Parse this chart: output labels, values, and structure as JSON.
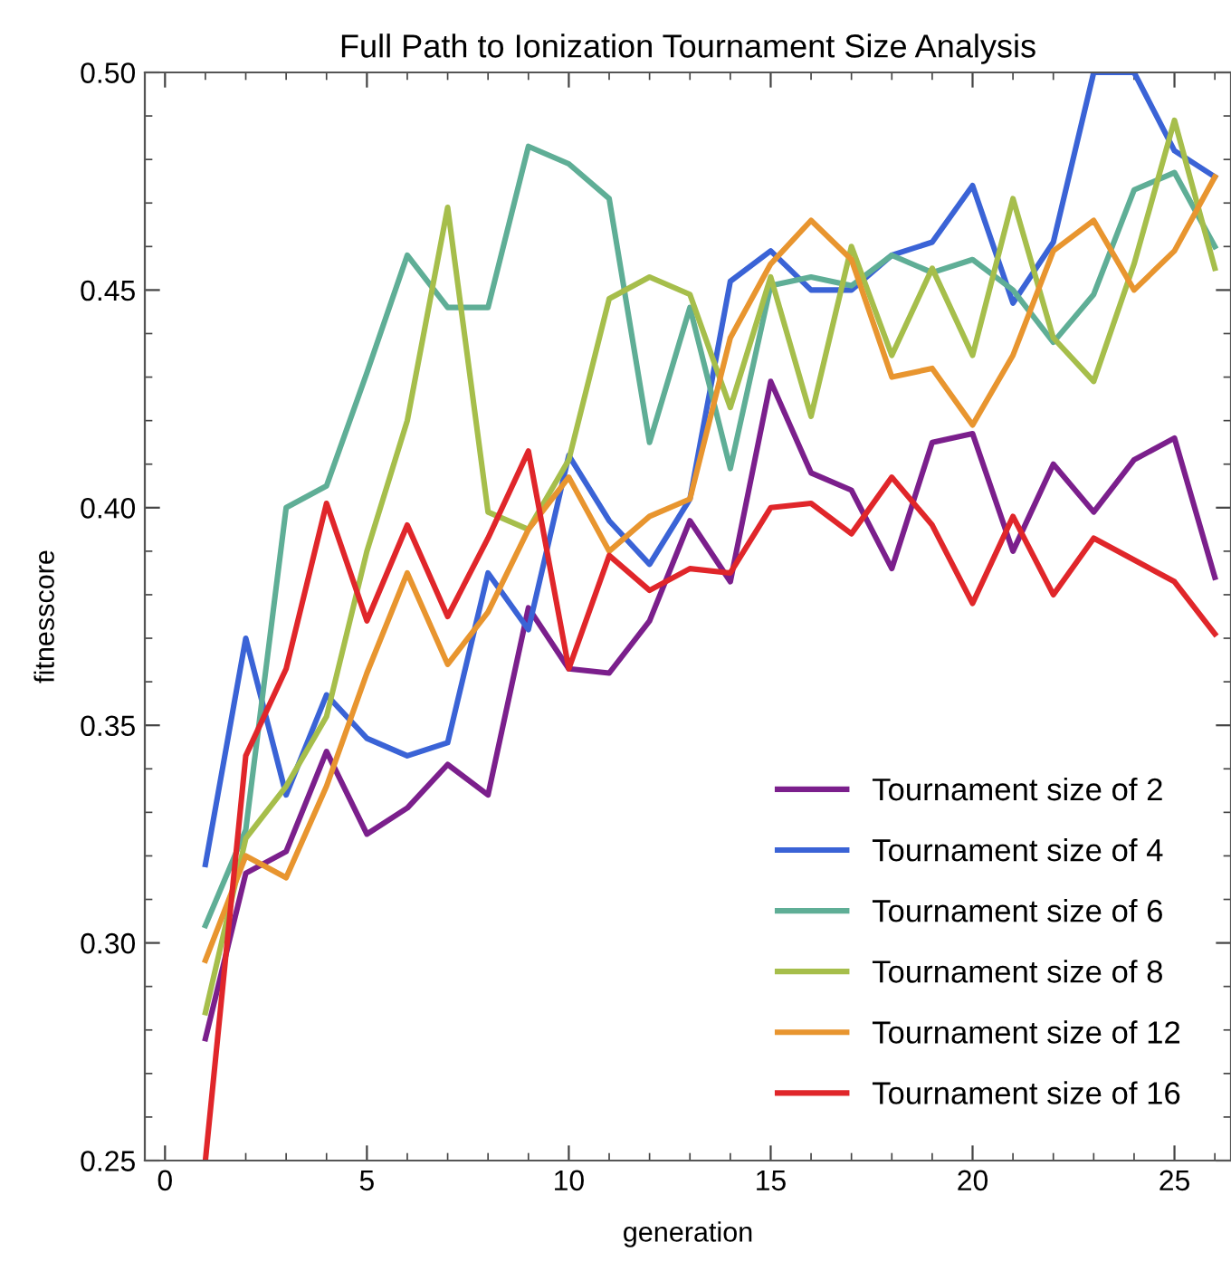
{
  "chart_data": {
    "type": "line",
    "title": "Full Path to Ionization Tournament Size Analysis",
    "xlabel": "generation",
    "ylabel": "fitnesscore",
    "x": [
      1,
      2,
      3,
      4,
      5,
      6,
      7,
      8,
      9,
      10,
      11,
      12,
      13,
      14,
      15,
      16,
      17,
      18,
      19,
      20,
      21,
      22,
      23,
      24,
      25,
      26
    ],
    "series": [
      {
        "name": "Tournament size of 2",
        "color": "#7b1f8c",
        "values": [
          0.278,
          0.316,
          0.321,
          0.344,
          0.325,
          0.331,
          0.341,
          0.334,
          0.377,
          0.363,
          0.362,
          0.374,
          0.397,
          0.383,
          0.429,
          0.408,
          0.404,
          0.386,
          0.415,
          0.417,
          0.39,
          0.41,
          0.399,
          0.411,
          0.416,
          0.384
        ]
      },
      {
        "name": "Tournament size of 4",
        "color": "#3a63d6",
        "values": [
          0.318,
          0.37,
          0.334,
          0.357,
          0.347,
          0.343,
          0.346,
          0.385,
          0.372,
          0.412,
          0.397,
          0.387,
          0.402,
          0.452,
          0.459,
          0.45,
          0.45,
          0.458,
          0.461,
          0.474,
          0.447,
          0.461,
          0.5,
          0.5,
          0.482,
          0.476
        ]
      },
      {
        "name": "Tournament size of 6",
        "color": "#5fae96",
        "values": [
          0.304,
          0.326,
          0.4,
          0.405,
          0.431,
          0.458,
          0.446,
          0.446,
          0.483,
          0.479,
          0.471,
          0.415,
          0.446,
          0.409,
          0.451,
          0.453,
          0.451,
          0.458,
          0.454,
          0.457,
          0.45,
          0.438,
          0.449,
          0.473,
          0.477,
          0.46
        ]
      },
      {
        "name": "Tournament size of 8",
        "color": "#a6be4b",
        "values": [
          0.284,
          0.324,
          0.336,
          0.352,
          0.39,
          0.42,
          0.469,
          0.399,
          0.395,
          0.411,
          0.448,
          0.453,
          0.449,
          0.423,
          0.453,
          0.421,
          0.46,
          0.435,
          0.455,
          0.435,
          0.471,
          0.439,
          0.429,
          0.456,
          0.489,
          0.455
        ]
      },
      {
        "name": "Tournament size of 12",
        "color": "#e8952f",
        "values": [
          0.296,
          0.32,
          0.315,
          0.336,
          0.362,
          0.385,
          0.364,
          0.376,
          0.395,
          0.407,
          0.39,
          0.398,
          0.402,
          0.439,
          0.456,
          0.466,
          0.457,
          0.43,
          0.432,
          0.419,
          0.435,
          0.459,
          0.466,
          0.45,
          0.459,
          0.476
        ]
      },
      {
        "name": "Tournament size of 16",
        "color": "#e0262a",
        "values": [
          0.25,
          0.343,
          0.363,
          0.401,
          0.374,
          0.396,
          0.375,
          0.393,
          0.413,
          0.363,
          0.389,
          0.381,
          0.386,
          0.385,
          0.4,
          0.401,
          0.394,
          0.407,
          0.396,
          0.378,
          0.398,
          0.38,
          0.393,
          0.388,
          0.383,
          0.371
        ]
      }
    ],
    "xlim": [
      -0.5,
      26.4
    ],
    "xticks": [
      0,
      5,
      10,
      15,
      20,
      25
    ],
    "ylim": [
      0.25,
      0.5
    ],
    "yticks": [
      {
        "value": 0.25,
        "label": "0.25"
      },
      {
        "value": 0.3,
        "label": "0.30"
      },
      {
        "value": 0.35,
        "label": "0.35"
      },
      {
        "value": 0.4,
        "label": "0.40"
      },
      {
        "value": 0.45,
        "label": "0.45"
      },
      {
        "value": 0.5,
        "label": "0.50"
      }
    ],
    "legend": "bottom right",
    "grid": false
  }
}
